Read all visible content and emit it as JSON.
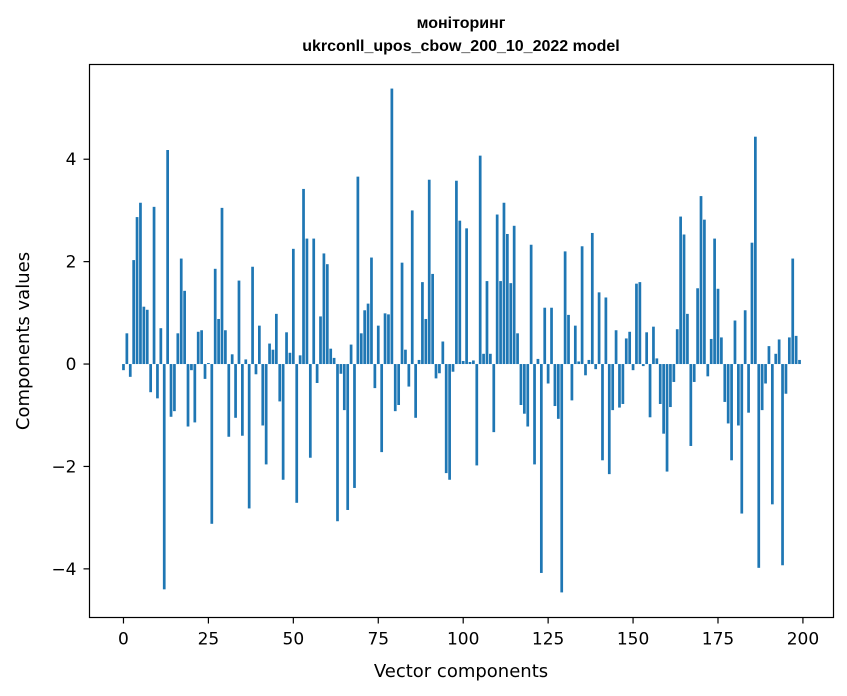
{
  "chart_data": {
    "type": "bar",
    "title_line1": "моніторинг",
    "title_line2": "ukrconll_upos_cbow_200_10_2022 model",
    "xlabel": "Vector components",
    "ylabel": "Components values",
    "xlim": [
      -10,
      209
    ],
    "ylim": [
      -4.95,
      5.85
    ],
    "xticks": [
      {
        "value": 0,
        "label": "0"
      },
      {
        "value": 25,
        "label": "25"
      },
      {
        "value": 50,
        "label": "50"
      },
      {
        "value": 75,
        "label": "75"
      },
      {
        "value": 100,
        "label": "100"
      },
      {
        "value": 125,
        "label": "125"
      },
      {
        "value": 150,
        "label": "150"
      },
      {
        "value": 175,
        "label": "175"
      },
      {
        "value": 200,
        "label": "200"
      }
    ],
    "yticks": [
      {
        "value": -4,
        "label": "−4"
      },
      {
        "value": -2,
        "label": "−2"
      },
      {
        "value": 0,
        "label": "0"
      },
      {
        "value": 2,
        "label": "2"
      },
      {
        "value": 4,
        "label": "4"
      }
    ],
    "bar_color": "#1f77b4",
    "grid": false,
    "legend": "none",
    "values": [
      -0.12,
      0.6,
      -0.25,
      2.03,
      2.87,
      3.15,
      1.12,
      1.06,
      -0.55,
      3.07,
      -0.67,
      0.7,
      -4.4,
      4.18,
      -1.03,
      -0.92,
      0.6,
      2.06,
      1.43,
      -1.22,
      -0.12,
      -1.14,
      0.63,
      0.66,
      -0.29,
      0.02,
      -3.12,
      1.86,
      0.88,
      3.05,
      0.66,
      -1.42,
      0.19,
      -1.05,
      1.63,
      -1.4,
      0.09,
      -2.82,
      1.9,
      -0.2,
      0.75,
      -1.2,
      -1.96,
      0.4,
      0.28,
      0.98,
      -0.73,
      -2.26,
      0.62,
      0.22,
      2.25,
      -2.71,
      0.17,
      3.42,
      2.45,
      -1.83,
      2.45,
      -0.37,
      0.93,
      2.16,
      1.95,
      0.3,
      0.12,
      -3.07,
      -0.19,
      -0.9,
      -2.85,
      0.38,
      -2.42,
      3.66,
      0.6,
      1.05,
      1.18,
      2.08,
      -0.47,
      0.75,
      -1.72,
      0.99,
      0.97,
      5.38,
      -0.92,
      -0.8,
      1.98,
      0.28,
      -0.44,
      3.0,
      -1.05,
      0.08,
      1.6,
      0.88,
      3.6,
      1.76,
      -0.28,
      -0.18,
      0.44,
      -2.13,
      -2.26,
      -0.15,
      3.58,
      2.8,
      0.06,
      2.65,
      0.04,
      0.07,
      -1.98,
      4.07,
      0.2,
      1.62,
      0.2,
      -1.33,
      2.92,
      1.62,
      3.15,
      2.54,
      1.58,
      2.7,
      0.6,
      -0.8,
      -0.97,
      -1.22,
      2.33,
      -1.96,
      0.1,
      -4.08,
      1.1,
      -0.38,
      1.1,
      -0.82,
      -1.07,
      -4.46,
      2.2,
      0.96,
      -0.71,
      0.75,
      0.05,
      2.3,
      -0.22,
      0.08,
      2.56,
      -0.1,
      1.4,
      -1.88,
      1.3,
      -2.15,
      -0.9,
      0.66,
      -0.85,
      -0.78,
      0.5,
      0.63,
      -0.12,
      1.57,
      1.6,
      -0.04,
      0.62,
      -1.04,
      0.73,
      0.11,
      -0.78,
      -1.36,
      -2.1,
      -0.84,
      -0.35,
      0.68,
      2.88,
      2.53,
      0.98,
      -1.6,
      -0.35,
      1.48,
      3.28,
      2.82,
      -0.24,
      0.49,
      2.45,
      1.47,
      0.52,
      -0.74,
      -1.16,
      -1.88,
      0.85,
      -1.2,
      -2.92,
      1.05,
      -0.95,
      2.37,
      4.44,
      -3.98,
      -0.9,
      -0.38,
      0.35,
      -2.74,
      0.2,
      0.48,
      -3.93,
      -0.58,
      0.52,
      2.06,
      0.55,
      0.08
    ]
  }
}
